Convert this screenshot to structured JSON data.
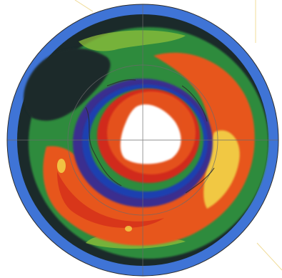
{
  "image": {
    "subject": "polar-ozone-map",
    "palette": {
      "background": "#ffffff",
      "outer_ring_blue": "#3f74d6",
      "dark_band": "#1b2a2a",
      "green_band": "#2e8b3e",
      "yellow_green": "#8fbf3a",
      "orange_high": "#e7561f",
      "red_high": "#d12a1a",
      "yellow_patch": "#f2d54a",
      "violet_ring": "#3b2f8f",
      "deep_blue_ring": "#1a3fb0",
      "hole_white": "#ffffff",
      "grid_line": "#6b6b6b",
      "coast_line": "#2b2b2b",
      "corner_line": "#f0dc9a"
    }
  }
}
